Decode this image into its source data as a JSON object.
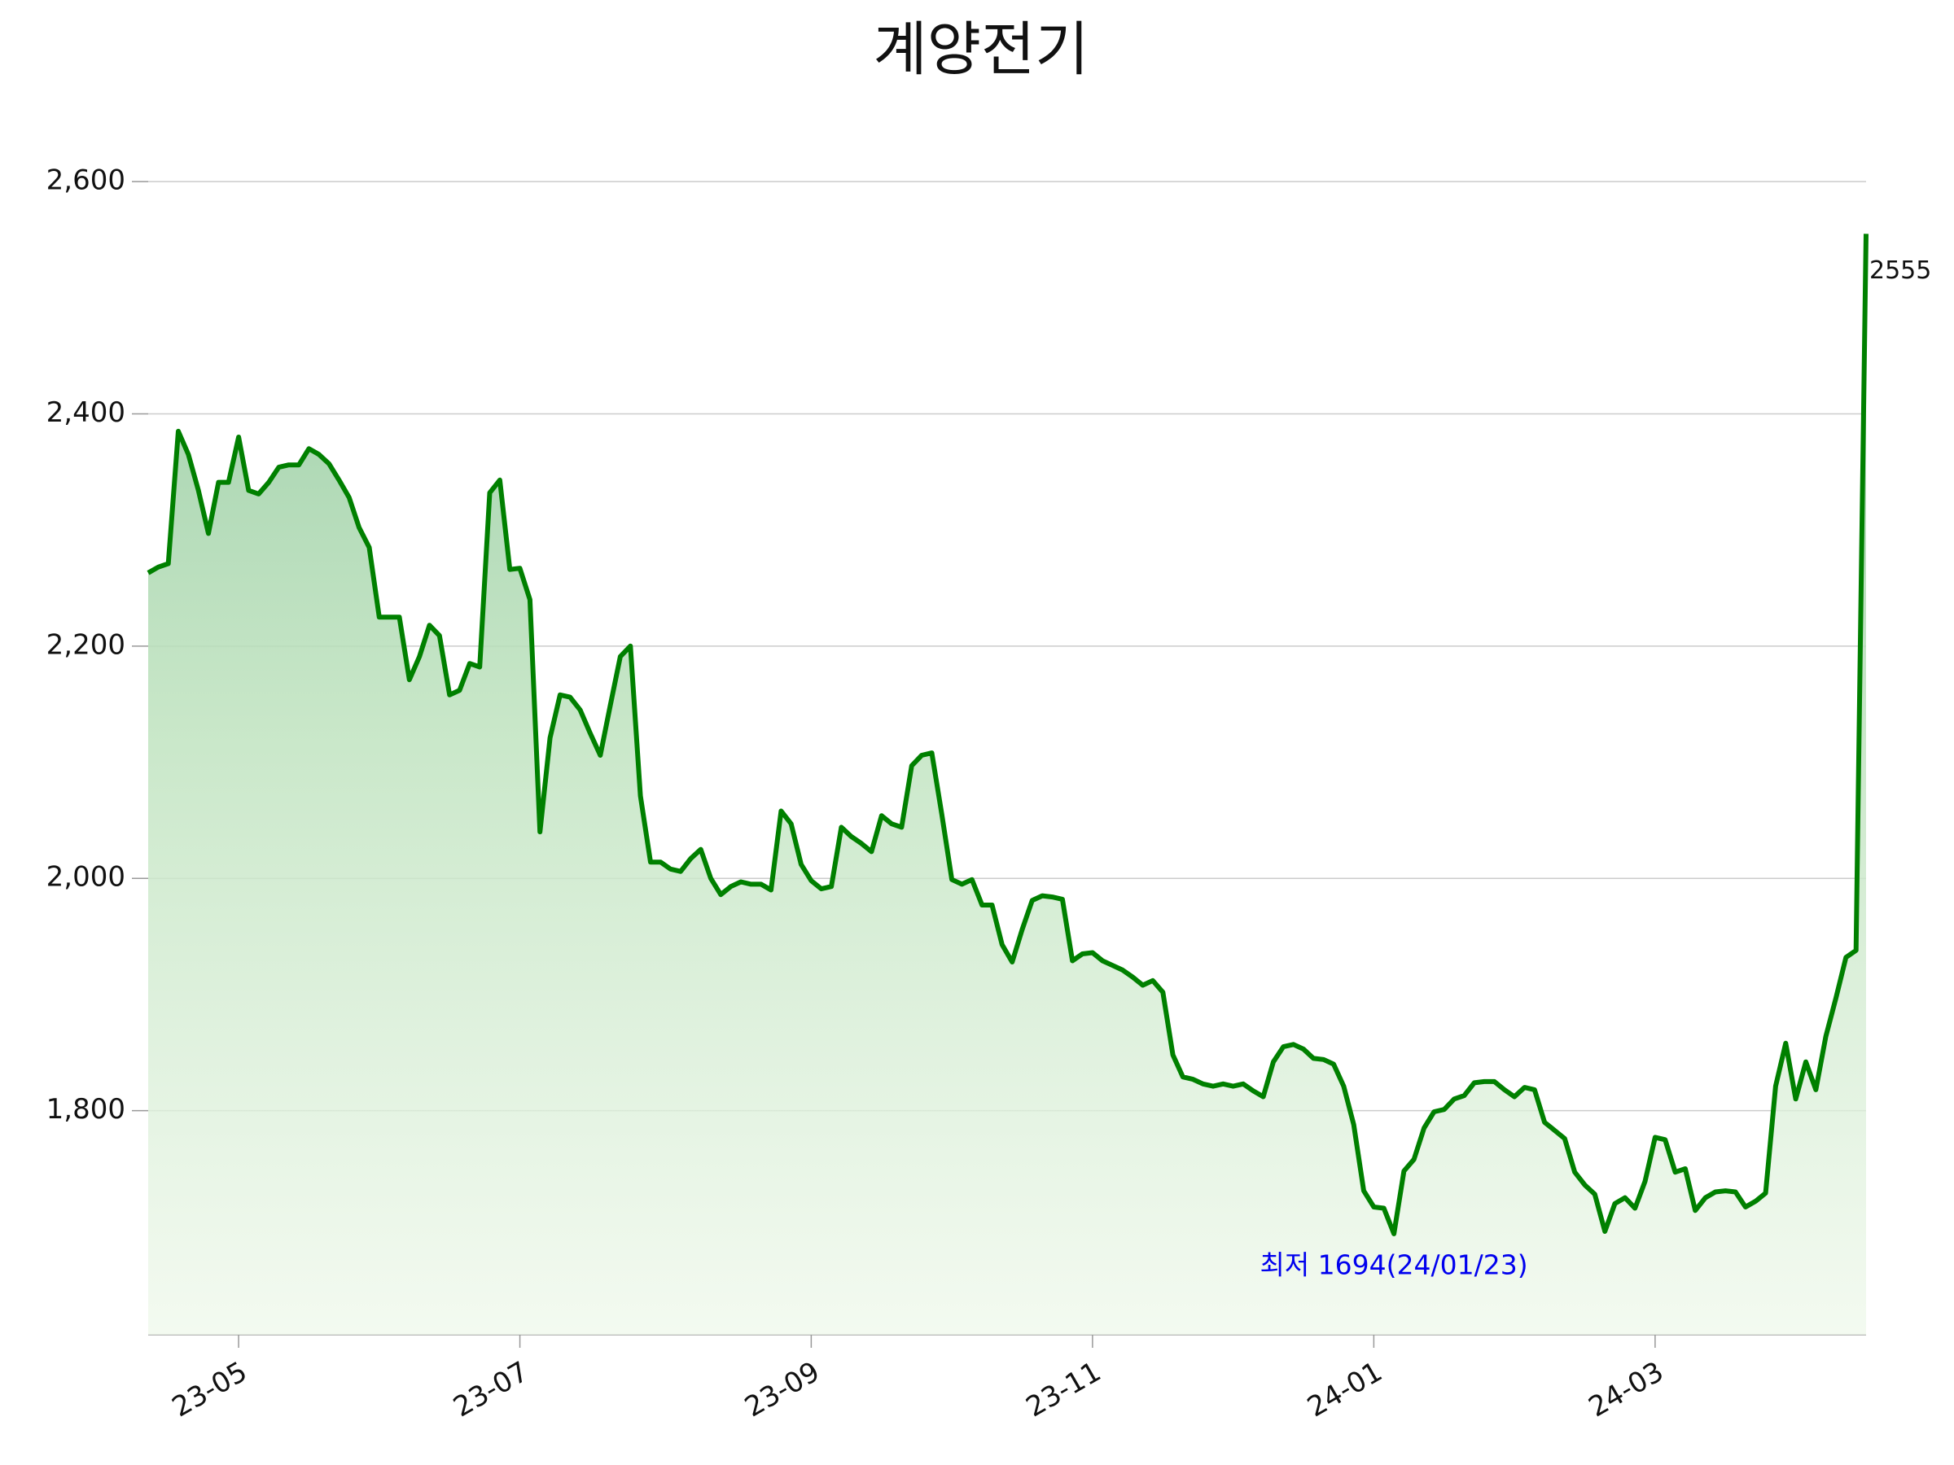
{
  "chart_data": {
    "type": "line",
    "title": "계양전기",
    "categories": [
      null,
      null,
      null,
      null,
      null,
      null,
      null,
      null,
      null,
      "23-05",
      null,
      null,
      null,
      null,
      null,
      null,
      null,
      null,
      null,
      null,
      null,
      null,
      null,
      null,
      null,
      null,
      null,
      null,
      null,
      null,
      null,
      null,
      null,
      null,
      null,
      null,
      null,
      "23-07",
      null,
      null,
      null,
      null,
      null,
      null,
      null,
      null,
      null,
      null,
      null,
      null,
      null,
      null,
      null,
      null,
      null,
      null,
      null,
      null,
      null,
      null,
      null,
      null,
      null,
      null,
      null,
      null,
      "23-09",
      null,
      null,
      null,
      null,
      null,
      null,
      null,
      null,
      null,
      null,
      null,
      null,
      null,
      null,
      null,
      null,
      null,
      null,
      null,
      null,
      null,
      null,
      null,
      null,
      null,
      null,
      null,
      "23-11",
      null,
      null,
      null,
      null,
      null,
      null,
      null,
      null,
      null,
      null,
      null,
      null,
      null,
      null,
      null,
      null,
      null,
      null,
      null,
      null,
      null,
      null,
      null,
      null,
      null,
      null,
      null,
      "24-01",
      null,
      null,
      null,
      null,
      null,
      null,
      null,
      null,
      null,
      null,
      null,
      null,
      null,
      null,
      null,
      null,
      null,
      null,
      null,
      null,
      null,
      null,
      null,
      null,
      null,
      null,
      null,
      "24-03",
      null,
      null,
      null,
      null,
      null,
      null,
      null,
      null,
      null,
      null,
      null,
      null,
      null,
      null,
      null,
      null,
      null,
      null,
      null,
      null,
      null
    ],
    "series": [
      {
        "name": "계양전기",
        "color": "#008000",
        "values": [
          2263,
          2268,
          2271,
          2385,
          2365,
          2334,
          2297,
          2341,
          2341,
          2380,
          2334,
          2331,
          2341,
          2354,
          2356,
          2356,
          2370,
          2365,
          2357,
          2343,
          2328,
          2302,
          2285,
          2225,
          2225,
          2225,
          2171,
          2191,
          2218,
          2209,
          2158,
          2162,
          2185,
          2182,
          2332,
          2343,
          2266,
          2267,
          2240,
          2040,
          2121,
          2158,
          2156,
          2145,
          2125,
          2106,
          2149,
          2191,
          2200,
          2071,
          2014,
          2014,
          2008,
          2006,
          2017,
          2025,
          2000,
          1986,
          1993,
          1997,
          1995,
          1995,
          1990,
          2058,
          2047,
          2012,
          1998,
          1991,
          1993,
          2044,
          2036,
          2030,
          2023,
          2054,
          2047,
          2044,
          2097,
          2106,
          2108,
          2055,
          1999,
          1995,
          1999,
          1977,
          1977,
          1943,
          1928,
          1956,
          1981,
          1985,
          1984,
          1982,
          1929,
          1935,
          1936,
          1929,
          1925,
          1921,
          1915,
          1908,
          1912,
          1902,
          1848,
          1829,
          1827,
          1823,
          1821,
          1823,
          1821,
          1823,
          1817,
          1812,
          1842,
          1855,
          1857,
          1853,
          1845,
          1844,
          1840,
          1821,
          1788,
          1731,
          1717,
          1716,
          1694,
          1748,
          1758,
          1785,
          1799,
          1801,
          1810,
          1813,
          1824,
          1825,
          1825,
          1818,
          1812,
          1820,
          1818,
          1790,
          1783,
          1776,
          1747,
          1736,
          1728,
          1696,
          1720,
          1725,
          1716,
          1739,
          1777,
          1775,
          1747,
          1750,
          1714,
          1725,
          1730,
          1731,
          1730,
          1717,
          1722,
          1729,
          1821,
          1858,
          1810,
          1842,
          1818,
          1864,
          1897,
          1932,
          1938,
          2555
        ]
      }
    ],
    "ylim": [
      1607,
      2640
    ],
    "yticks": [
      {
        "value": 1800,
        "label": "1,800"
      },
      {
        "value": 2000,
        "label": "2,000"
      },
      {
        "value": 2200,
        "label": "2,200"
      },
      {
        "value": 2400,
        "label": "2,400"
      },
      {
        "value": 2600,
        "label": "2,600"
      }
    ],
    "grid": true,
    "annotations": [
      "최저 1694(24/01/23)"
    ]
  }
}
